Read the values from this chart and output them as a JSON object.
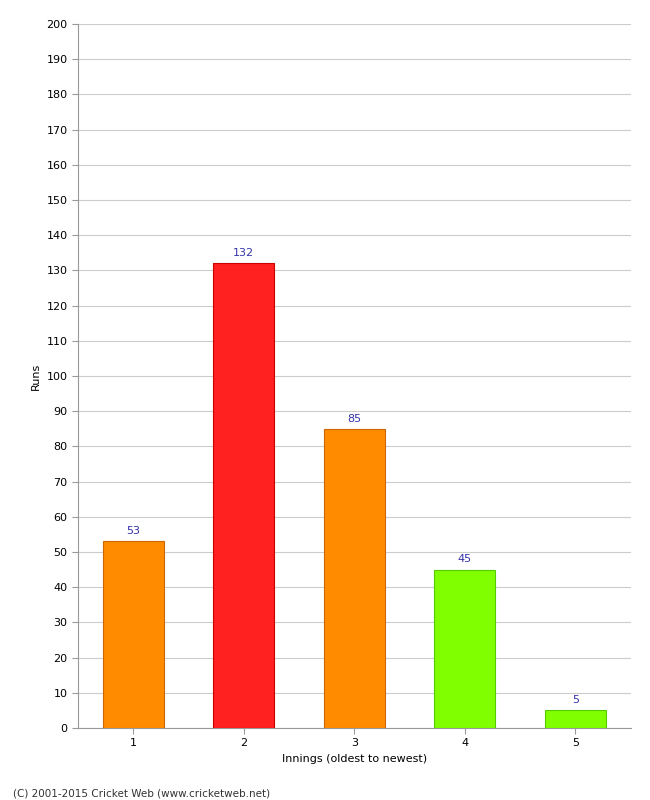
{
  "categories": [
    "1",
    "2",
    "3",
    "4",
    "5"
  ],
  "values": [
    53,
    132,
    85,
    45,
    5
  ],
  "bar_colors": [
    "#ff8c00",
    "#ff2020",
    "#ff8c00",
    "#80ff00",
    "#80ff00"
  ],
  "bar_edgecolors": [
    "#cc6600",
    "#cc0000",
    "#cc6600",
    "#55cc00",
    "#55cc00"
  ],
  "xlabel": "Innings (oldest to newest)",
  "ylabel": "Runs",
  "ylim": [
    0,
    200
  ],
  "yticks": [
    0,
    10,
    20,
    30,
    40,
    50,
    60,
    70,
    80,
    90,
    100,
    110,
    120,
    130,
    140,
    150,
    160,
    170,
    180,
    190,
    200
  ],
  "label_color": "#3333aa",
  "label_fontsize": 8,
  "footer": "(C) 2001-2015 Cricket Web (www.cricketweb.net)",
  "background_color": "#ffffff",
  "grid_color": "#cccccc",
  "bar_width": 0.55,
  "tick_fontsize": 8,
  "axis_label_fontsize": 8
}
